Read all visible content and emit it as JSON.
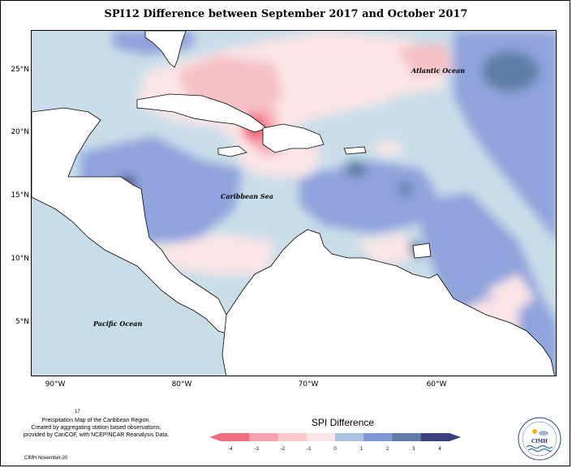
{
  "title": "SPI12 Difference between September 2017 and October 2017",
  "axes": {
    "lat_labels": [
      "25°N",
      "20°N",
      "15°N",
      "10°N",
      "5°N"
    ],
    "lon_labels": [
      "90°W",
      "80°W",
      "70°W",
      "60°W"
    ]
  },
  "map_labels": {
    "atlantic": "Atlantic Ocean",
    "caribbean": "Caribbean Sea",
    "pacific": "Pacific Ocean"
  },
  "legend": {
    "title": "SPI Difference",
    "ticks": [
      "-4",
      "-3",
      "-2",
      "-1",
      "0",
      "1",
      "2",
      "3",
      "4"
    ],
    "colors": [
      "#f26d7d",
      "#f5a3ac",
      "#f8c8cd",
      "#fbe5e7",
      "#e4eef3",
      "#a9c2e0",
      "#8096d6",
      "#5f7ea6",
      "#3b3f7e"
    ]
  },
  "footnote": {
    "page_number": "17",
    "lines": [
      "Precipitation Map of the Caribbean Region.",
      "Created by aggregating station based observations,",
      "provided by CariCOF, with NCEP/NCAR Reanalysis Data."
    ],
    "credit": "CIMH November-20"
  },
  "logo": {
    "text": "CIMH"
  }
}
